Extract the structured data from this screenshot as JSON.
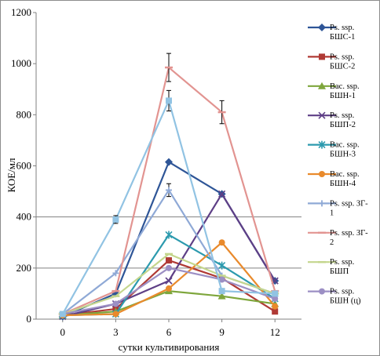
{
  "chart_data": {
    "type": "line",
    "xlabel": "сутки культивирования",
    "ylabel": "КОЕ/мл",
    "x": [
      0,
      3,
      6,
      9,
      12
    ],
    "x_ticks": [
      "0",
      "3",
      "6",
      "9",
      "12"
    ],
    "y_ticks": [
      "0",
      "200",
      "400",
      "600",
      "800",
      "1000",
      "1200"
    ],
    "ylim": [
      0,
      1200
    ],
    "xlim": [
      -1.5,
      13.5
    ],
    "grid": "horizontal gridlines at 200 and 400",
    "legend_position": "right",
    "series": [
      {
        "name": "Ps. ssp. БШС-1",
        "values": [
          10,
          100,
          615,
          490,
          150
        ],
        "color": "#2e5597",
        "marker": "diamond",
        "legend_lines": [
          "Ps. ssp.",
          "БШС-1"
        ]
      },
      {
        "name": "Ps. ssp. БШС-2",
        "values": [
          15,
          40,
          230,
          160,
          30
        ],
        "color": "#b03a35",
        "marker": "square",
        "legend_lines": [
          "Ps. ssp.",
          "БШС-2"
        ]
      },
      {
        "name": "Bac. ssp. БШН-1",
        "values": [
          15,
          30,
          110,
          90,
          60
        ],
        "color": "#7ea63c",
        "marker": "triangle",
        "legend_lines": [
          "Bac. ssp.",
          "БШН-1"
        ]
      },
      {
        "name": "Ps. ssp. БШП-2",
        "values": [
          10,
          60,
          150,
          490,
          150
        ],
        "color": "#5e3f86",
        "marker": "x",
        "legend_lines": [
          "Ps. ssp.",
          "БШП-2"
        ]
      },
      {
        "name": "Bac. ssp. БШН-3",
        "values": [
          15,
          20,
          330,
          210,
          80
        ],
        "color": "#2c9aae",
        "marker": "star",
        "legend_lines": [
          "Bac. ssp.",
          "БШН-3"
        ]
      },
      {
        "name": "Bac. ssp. БШН-4",
        "values": [
          15,
          20,
          120,
          300,
          50
        ],
        "color": "#e98a2c",
        "marker": "circle",
        "legend_lines": [
          "Bac. ssp.",
          "БШН-4"
        ]
      },
      {
        "name": "Ps. ssp. ЗГ-1",
        "values": [
          20,
          180,
          505,
          170,
          100
        ],
        "color": "#8fa9d6",
        "marker": "plus",
        "error": [
          0,
          0,
          25,
          0,
          0
        ],
        "legend_lines": [
          "Ps. ssp. ЗГ-",
          "1"
        ]
      },
      {
        "name": "Ps. ssp. ЗГ-2",
        "values": [
          20,
          110,
          985,
          810,
          110
        ],
        "color": "#e29491",
        "marker": "dash",
        "error": [
          0,
          0,
          55,
          45,
          0
        ],
        "legend_lines": [
          "Ps. ssp. ЗГ-",
          "2"
        ]
      },
      {
        "name": "Ps. ssp. БШП",
        "values": [
          20,
          90,
          255,
          170,
          100
        ],
        "color": "#c4d68d",
        "marker": "dash",
        "legend_lines": [
          "Ps. ssp.",
          "БШП"
        ]
      },
      {
        "name": "Ps. ssp. БШН (ц)",
        "values": [
          20,
          60,
          200,
          155,
          80
        ],
        "color": "#9c8fc4",
        "marker": "circle",
        "legend_lines": [
          "Ps. ssp.",
          "БШН  (ц)"
        ]
      },
      {
        "name": "light blue square series",
        "values": [
          20,
          390,
          855,
          110,
          100
        ],
        "color": "#91c3e3",
        "marker": "square",
        "error": [
          0,
          15,
          40,
          0,
          0
        ],
        "legend_lines": []
      }
    ]
  }
}
